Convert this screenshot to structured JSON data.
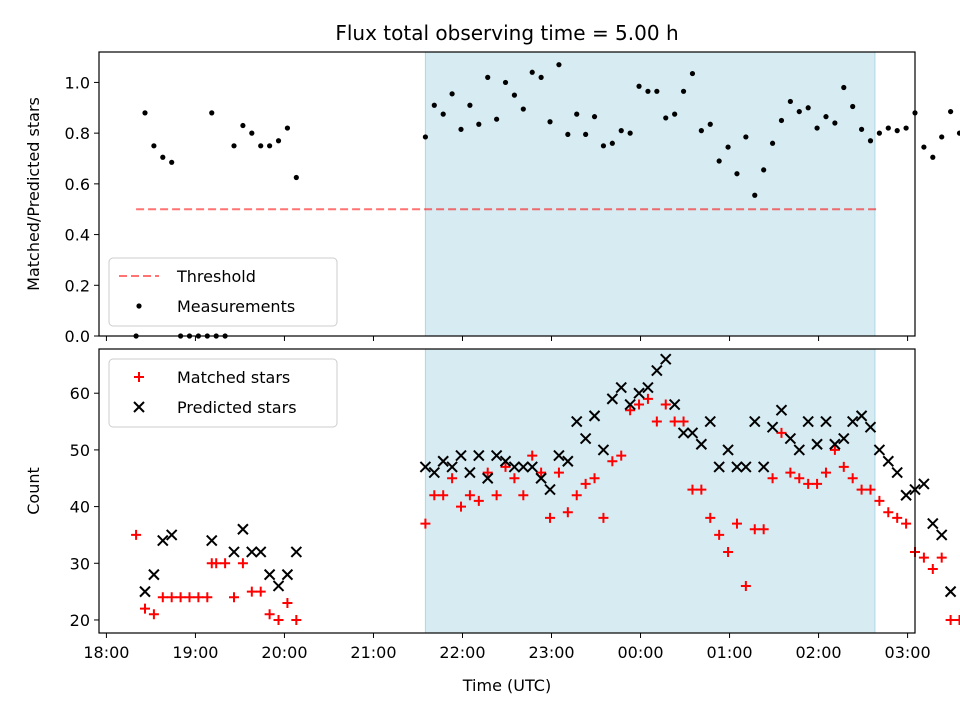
{
  "figure": {
    "title": "Flux total observing time = 5.00 h",
    "xlabel": "Time (UTC)",
    "colors": {
      "shade": "#add8e6",
      "threshold": "#ff0000",
      "matched": "#ff0000",
      "predicted": "#000000",
      "measurement": "#000000"
    }
  },
  "chart_data": [
    {
      "type": "scatter",
      "title": "Flux total observing time = 5.00 h",
      "xlabel": "",
      "ylabel": "Matched/Predicted stars",
      "xlim": [
        "17:55",
        "03:05"
      ],
      "ylim": [
        0,
        1.12
      ],
      "yticks": [
        0.0,
        0.2,
        0.4,
        0.6,
        0.8,
        1.0
      ],
      "ytick_labels": [
        "0.0",
        "0.2",
        "0.4",
        "0.6",
        "0.8",
        "1.0"
      ],
      "xtick_labels": [
        "18:00",
        "19:00",
        "20:00",
        "21:00",
        "22:00",
        "23:00",
        "00:00",
        "01:00",
        "02:00",
        "03:00"
      ],
      "shaded_span": [
        "21:35",
        "02:38"
      ],
      "threshold": {
        "name": "Threshold",
        "y": 0.5,
        "x_range": [
          "18:20",
          "02:40"
        ]
      },
      "legend": {
        "placement": "lower-left",
        "entries": [
          "Threshold",
          "Measurements"
        ]
      },
      "series": [
        {
          "name": "Measurements",
          "points": [
            [
              "18:20",
              0.0
            ],
            [
              "18:26",
              0.88
            ],
            [
              "18:32",
              0.75
            ],
            [
              "18:38",
              0.705
            ],
            [
              "18:44",
              0.685
            ],
            [
              "18:50",
              0.0
            ],
            [
              "18:56",
              0.0
            ],
            [
              "19:02",
              0.0
            ],
            [
              "19:08",
              0.0
            ],
            [
              "19:11",
              0.88
            ],
            [
              "19:14",
              0.0
            ],
            [
              "19:20",
              0.0
            ],
            [
              "19:26",
              0.75
            ],
            [
              "19:32",
              0.83
            ],
            [
              "19:38",
              0.8
            ],
            [
              "19:44",
              0.75
            ],
            [
              "19:50",
              0.75
            ],
            [
              "19:56",
              0.77
            ],
            [
              "20:02",
              0.82
            ],
            [
              "20:08",
              0.625
            ],
            [
              "21:35",
              0.785
            ],
            [
              "21:41",
              0.91
            ],
            [
              "21:47",
              0.875
            ],
            [
              "21:53",
              0.955
            ],
            [
              "21:59",
              0.815
            ],
            [
              "22:05",
              0.91
            ],
            [
              "22:11",
              0.835
            ],
            [
              "22:17",
              1.02
            ],
            [
              "22:23",
              0.855
            ],
            [
              "22:29",
              1.0
            ],
            [
              "22:35",
              0.95
            ],
            [
              "22:41",
              0.895
            ],
            [
              "22:47",
              1.04
            ],
            [
              "22:53",
              1.02
            ],
            [
              "22:59",
              0.845
            ],
            [
              "23:05",
              1.07
            ],
            [
              "23:11",
              0.795
            ],
            [
              "23:17",
              0.875
            ],
            [
              "23:23",
              0.795
            ],
            [
              "23:29",
              0.865
            ],
            [
              "23:35",
              0.75
            ],
            [
              "23:41",
              0.76
            ],
            [
              "23:47",
              0.81
            ],
            [
              "23:53",
              0.8
            ],
            [
              "23:59",
              0.985
            ],
            [
              "00:05",
              0.965
            ],
            [
              "00:11",
              0.965
            ],
            [
              "00:17",
              0.86
            ],
            [
              "00:23",
              0.875
            ],
            [
              "00:29",
              0.965
            ],
            [
              "00:35",
              1.035
            ],
            [
              "00:41",
              0.81
            ],
            [
              "00:47",
              0.835
            ],
            [
              "00:53",
              0.69
            ],
            [
              "00:59",
              0.745
            ],
            [
              "01:05",
              0.64
            ],
            [
              "01:11",
              0.785
            ],
            [
              "01:17",
              0.555
            ],
            [
              "01:23",
              0.655
            ],
            [
              "01:29",
              0.76
            ],
            [
              "01:35",
              0.85
            ],
            [
              "01:41",
              0.925
            ],
            [
              "01:47",
              0.885
            ],
            [
              "01:53",
              0.9
            ],
            [
              "01:59",
              0.82
            ],
            [
              "02:05",
              0.865
            ],
            [
              "02:11",
              0.84
            ],
            [
              "02:17",
              0.98
            ],
            [
              "02:23",
              0.905
            ],
            [
              "02:29",
              0.815
            ],
            [
              "02:35",
              0.77
            ],
            [
              "02:41",
              0.8
            ],
            [
              "02:47",
              0.82
            ],
            [
              "02:53",
              0.81
            ],
            [
              "02:59",
              0.82
            ],
            [
              "03:05",
              0.88
            ],
            [
              "03:11",
              0.745
            ],
            [
              "03:17",
              0.705
            ],
            [
              "03:23",
              0.785
            ],
            [
              "03:29",
              0.885
            ],
            [
              "03:35",
              0.8
            ],
            [
              "03:41",
              0.0
            ]
          ]
        }
      ]
    },
    {
      "type": "scatter",
      "title": "",
      "xlabel": "Time (UTC)",
      "ylabel": "Count",
      "xlim": [
        "17:55",
        "03:05"
      ],
      "ylim": [
        17.7,
        67.8
      ],
      "yticks": [
        20,
        30,
        40,
        50,
        60
      ],
      "ytick_labels": [
        "20",
        "30",
        "40",
        "50",
        "60"
      ],
      "xtick_labels": [
        "18:00",
        "19:00",
        "20:00",
        "21:00",
        "22:00",
        "23:00",
        "00:00",
        "01:00",
        "02:00",
        "03:00"
      ],
      "shaded_span": [
        "21:35",
        "02:38"
      ],
      "legend": {
        "placement": "upper-left",
        "entries": [
          "Matched stars",
          "Predicted stars"
        ]
      },
      "series": [
        {
          "name": "Matched stars",
          "marker": "plus",
          "points": [
            [
              "18:20",
              35
            ],
            [
              "18:26",
              22
            ],
            [
              "18:32",
              21
            ],
            [
              "18:38",
              24
            ],
            [
              "18:44",
              24
            ],
            [
              "18:50",
              24
            ],
            [
              "18:56",
              24
            ],
            [
              "19:02",
              24
            ],
            [
              "19:08",
              24
            ],
            [
              "19:11",
              30
            ],
            [
              "19:14",
              30
            ],
            [
              "19:20",
              30
            ],
            [
              "19:26",
              24
            ],
            [
              "19:32",
              30
            ],
            [
              "19:38",
              25
            ],
            [
              "19:44",
              25
            ],
            [
              "19:50",
              21
            ],
            [
              "19:56",
              20
            ],
            [
              "20:02",
              23
            ],
            [
              "20:08",
              20
            ],
            [
              "21:35",
              37
            ],
            [
              "21:41",
              42
            ],
            [
              "21:47",
              42
            ],
            [
              "21:53",
              45
            ],
            [
              "21:59",
              40
            ],
            [
              "22:05",
              42
            ],
            [
              "22:11",
              41
            ],
            [
              "22:17",
              46
            ],
            [
              "22:23",
              42
            ],
            [
              "22:29",
              47
            ],
            [
              "22:35",
              45
            ],
            [
              "22:41",
              42
            ],
            [
              "22:47",
              49
            ],
            [
              "22:53",
              46
            ],
            [
              "22:59",
              38
            ],
            [
              "23:05",
              46
            ],
            [
              "23:11",
              39
            ],
            [
              "23:17",
              42
            ],
            [
              "23:23",
              44
            ],
            [
              "23:29",
              45
            ],
            [
              "23:35",
              38
            ],
            [
              "23:41",
              48
            ],
            [
              "23:47",
              49
            ],
            [
              "23:53",
              57
            ],
            [
              "23:59",
              58
            ],
            [
              "00:05",
              59
            ],
            [
              "00:11",
              55
            ],
            [
              "00:17",
              58
            ],
            [
              "00:23",
              55
            ],
            [
              "00:29",
              55
            ],
            [
              "00:35",
              43
            ],
            [
              "00:41",
              43
            ],
            [
              "00:47",
              38
            ],
            [
              "00:53",
              35
            ],
            [
              "00:59",
              32
            ],
            [
              "01:05",
              37
            ],
            [
              "01:11",
              26
            ],
            [
              "01:17",
              36
            ],
            [
              "01:23",
              36
            ],
            [
              "01:29",
              45
            ],
            [
              "01:35",
              53
            ],
            [
              "01:41",
              46
            ],
            [
              "01:47",
              45
            ],
            [
              "01:53",
              44
            ],
            [
              "01:59",
              44
            ],
            [
              "02:05",
              46
            ],
            [
              "02:11",
              50
            ],
            [
              "02:17",
              47
            ],
            [
              "02:23",
              45
            ],
            [
              "02:29",
              43
            ],
            [
              "02:35",
              43
            ],
            [
              "02:41",
              41
            ],
            [
              "02:47",
              39
            ],
            [
              "02:53",
              38
            ],
            [
              "02:59",
              37
            ],
            [
              "03:05",
              32
            ],
            [
              "03:11",
              31
            ],
            [
              "03:17",
              29
            ],
            [
              "03:23",
              31
            ],
            [
              "03:29",
              20
            ],
            [
              "03:35",
              20
            ]
          ]
        },
        {
          "name": "Predicted stars",
          "marker": "x",
          "points": [
            [
              "18:26",
              25
            ],
            [
              "18:32",
              28
            ],
            [
              "18:38",
              34
            ],
            [
              "18:44",
              35
            ],
            [
              "19:11",
              34
            ],
            [
              "19:26",
              32
            ],
            [
              "19:32",
              36
            ],
            [
              "19:38",
              32
            ],
            [
              "19:44",
              32
            ],
            [
              "19:50",
              28
            ],
            [
              "19:56",
              26
            ],
            [
              "20:02",
              28
            ],
            [
              "20:08",
              32
            ],
            [
              "21:35",
              47
            ],
            [
              "21:41",
              46
            ],
            [
              "21:47",
              48
            ],
            [
              "21:53",
              47
            ],
            [
              "21:59",
              49
            ],
            [
              "22:05",
              46
            ],
            [
              "22:11",
              49
            ],
            [
              "22:17",
              45
            ],
            [
              "22:23",
              49
            ],
            [
              "22:29",
              48
            ],
            [
              "22:35",
              47
            ],
            [
              "22:41",
              47
            ],
            [
              "22:47",
              47
            ],
            [
              "22:53",
              45
            ],
            [
              "22:59",
              43
            ],
            [
              "23:05",
              49
            ],
            [
              "23:11",
              48
            ],
            [
              "23:17",
              55
            ],
            [
              "23:23",
              52
            ],
            [
              "23:29",
              56
            ],
            [
              "23:35",
              50
            ],
            [
              "23:41",
              59
            ],
            [
              "23:47",
              61
            ],
            [
              "23:53",
              58
            ],
            [
              "23:59",
              60
            ],
            [
              "00:05",
              61
            ],
            [
              "00:11",
              64
            ],
            [
              "00:17",
              66
            ],
            [
              "00:23",
              58
            ],
            [
              "00:29",
              53
            ],
            [
              "00:35",
              53
            ],
            [
              "00:41",
              51
            ],
            [
              "00:47",
              55
            ],
            [
              "00:53",
              47
            ],
            [
              "00:59",
              50
            ],
            [
              "01:05",
              47
            ],
            [
              "01:11",
              47
            ],
            [
              "01:17",
              55
            ],
            [
              "01:23",
              47
            ],
            [
              "01:29",
              54
            ],
            [
              "01:35",
              57
            ],
            [
              "01:41",
              52
            ],
            [
              "01:47",
              50
            ],
            [
              "01:53",
              55
            ],
            [
              "01:59",
              51
            ],
            [
              "02:05",
              55
            ],
            [
              "02:11",
              51
            ],
            [
              "02:17",
              52
            ],
            [
              "02:23",
              55
            ],
            [
              "02:29",
              56
            ],
            [
              "02:35",
              54
            ],
            [
              "02:41",
              50
            ],
            [
              "02:47",
              48
            ],
            [
              "02:53",
              46
            ],
            [
              "02:59",
              42
            ],
            [
              "03:05",
              43
            ],
            [
              "03:11",
              44
            ],
            [
              "03:17",
              37
            ],
            [
              "03:23",
              35
            ],
            [
              "03:29",
              25
            ]
          ]
        }
      ]
    }
  ]
}
